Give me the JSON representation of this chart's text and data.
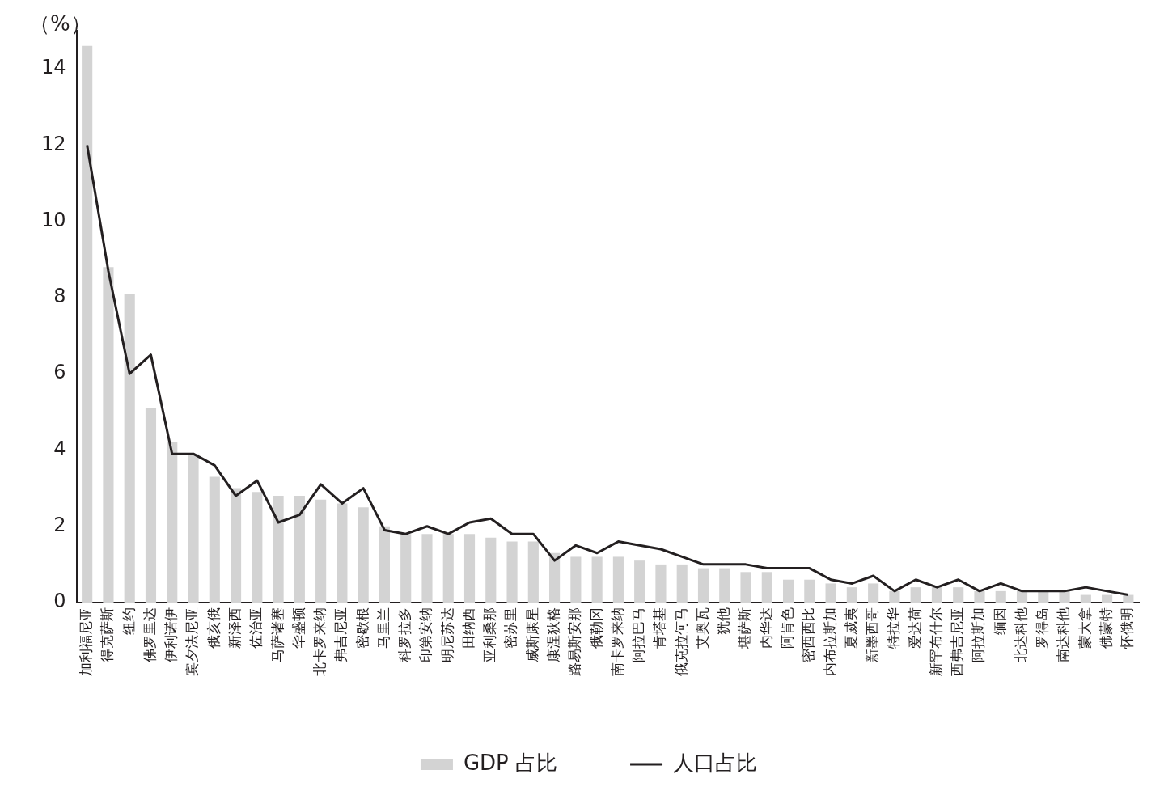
{
  "chart_data": {
    "type": "bar",
    "ylabel": "（%）",
    "categories": [
      "加利福尼亚",
      "得克萨斯",
      "纽约",
      "佛罗里达",
      "伊利诺伊",
      "宾夕法尼亚",
      "俄亥俄",
      "新泽西",
      "佐治亚",
      "马萨诸塞",
      "华盛顿",
      "北卡罗来纳",
      "弗吉尼亚",
      "密歇根",
      "马里兰",
      "科罗拉多",
      "印第安纳",
      "明尼苏达",
      "田纳西",
      "亚利桑那",
      "密苏里",
      "威斯康星",
      "康涅狄格",
      "路易斯安那",
      "俄勒冈",
      "南卡罗来纳",
      "阿拉巴马",
      "肯塔基",
      "俄克拉何马",
      "艾奥瓦",
      "犹他",
      "堪萨斯",
      "内华达",
      "阿肯色",
      "密西西比",
      "内布拉斯加",
      "夏威夷",
      "新墨西哥",
      "特拉华",
      "爱达荷",
      "新罕布什尔",
      "西弗吉尼亚",
      "阿拉斯加",
      "缅因",
      "北达科他",
      "罗得岛",
      "南达科他",
      "蒙大拿",
      "佛蒙特",
      "怀俄明"
    ],
    "series": [
      {
        "name": "GDP 占比",
        "color": "#d3d3d3",
        "values": [
          14.6,
          8.8,
          8.1,
          5.1,
          4.2,
          3.9,
          3.3,
          3.0,
          2.9,
          2.8,
          2.8,
          2.7,
          2.6,
          2.5,
          2.0,
          1.8,
          1.8,
          1.8,
          1.8,
          1.7,
          1.6,
          1.6,
          1.3,
          1.2,
          1.2,
          1.2,
          1.1,
          1.0,
          1.0,
          0.9,
          0.9,
          0.8,
          0.8,
          0.6,
          0.6,
          0.5,
          0.4,
          0.5,
          0.3,
          0.4,
          0.4,
          0.4,
          0.3,
          0.3,
          0.3,
          0.3,
          0.3,
          0.2,
          0.2,
          0.2
        ]
      },
      {
        "name": "人口占比",
        "type": "line",
        "color": "#231f20",
        "values": [
          12.0,
          8.7,
          6.0,
          6.5,
          3.9,
          3.9,
          3.6,
          2.8,
          3.2,
          2.1,
          2.3,
          3.1,
          2.6,
          3.0,
          1.9,
          1.8,
          2.0,
          1.8,
          2.1,
          2.2,
          1.8,
          1.8,
          1.1,
          1.5,
          1.3,
          1.6,
          1.5,
          1.4,
          1.2,
          1.0,
          1.0,
          1.0,
          0.9,
          0.9,
          0.9,
          0.6,
          0.5,
          0.7,
          0.3,
          0.6,
          0.4,
          0.6,
          0.3,
          0.5,
          0.3,
          0.3,
          0.3,
          0.4,
          0.3,
          0.2
        ]
      }
    ],
    "ylim": [
      0,
      15
    ],
    "yticks": [
      0,
      2,
      4,
      6,
      8,
      10,
      12,
      14
    ],
    "grid": false,
    "legend": "bottom",
    "marker": "none",
    "line_style": "solid"
  }
}
